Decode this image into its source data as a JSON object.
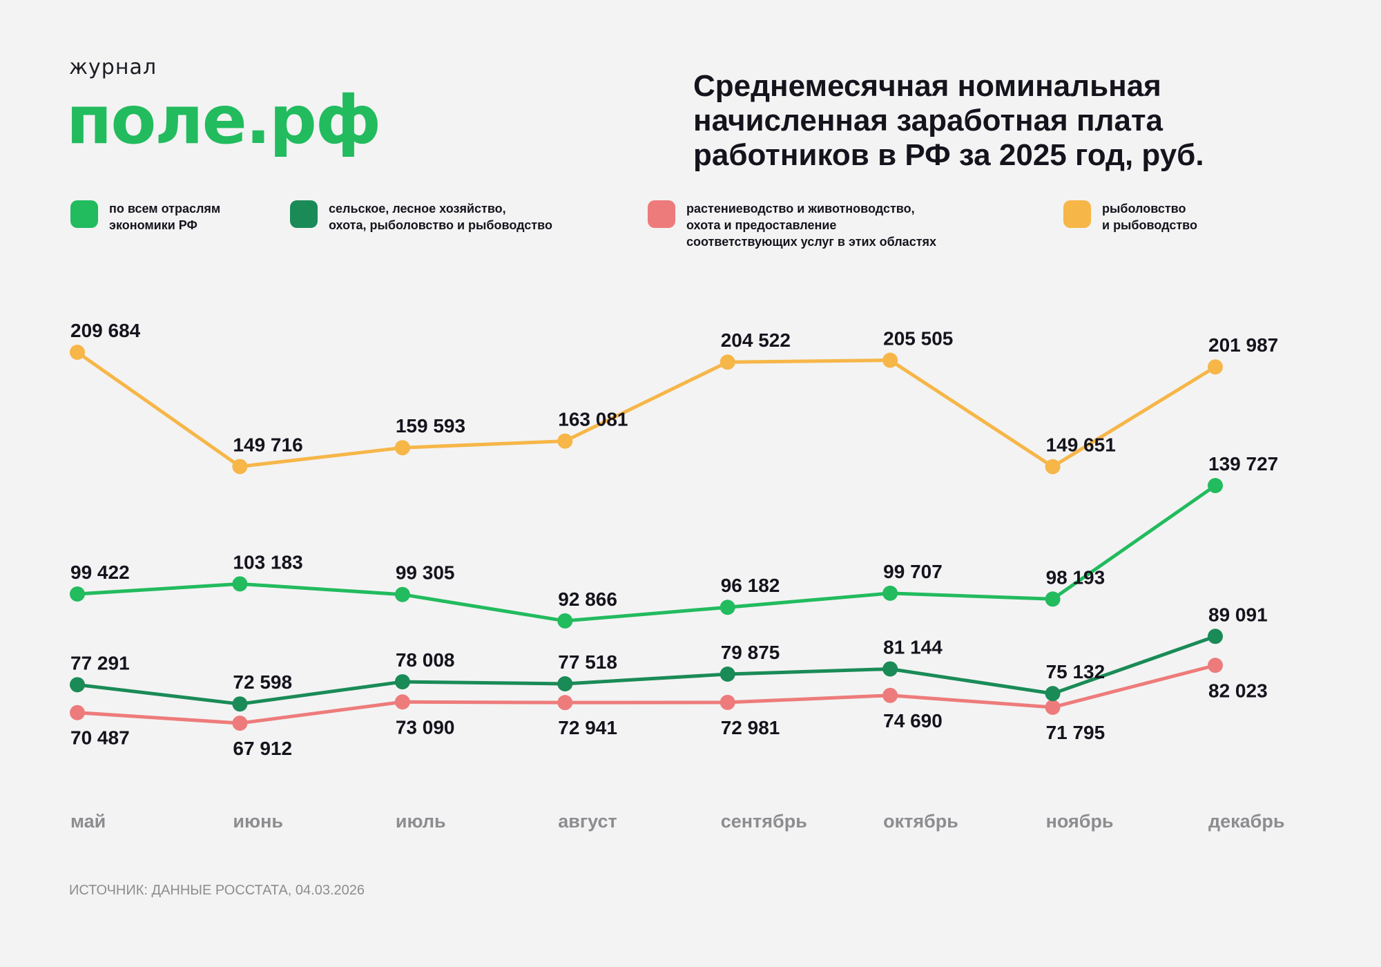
{
  "logo": {
    "small": "журнал",
    "big": "поле.рф"
  },
  "title": [
    "Среднемесячная номинальная",
    "начисленная заработная плата",
    "работников в РФ за 2025 год, руб."
  ],
  "source": "ИСТОЧНИК: ДАННЫЕ РОССТАТА, 04.03.2026",
  "chart_data": {
    "type": "line",
    "title": "Среднемесячная номинальная начисленная заработная плата работников в РФ за 2025 год, руб.",
    "categories": [
      "май",
      "июнь",
      "июль",
      "август",
      "сентябрь",
      "октябрь",
      "ноябрь",
      "декабрь"
    ],
    "grid": false,
    "legend_position": "top",
    "series": [
      {
        "name": "по всем отраслям\nэкономики РФ",
        "color": "#22bb5e",
        "label_side": "above",
        "values": [
          99422,
          103183,
          99305,
          92866,
          96182,
          99707,
          98193,
          139727
        ],
        "labels": [
          "99 422",
          "103 183",
          "99 305",
          "92 866",
          "96 182",
          "99 707",
          "98 193",
          "139 727"
        ]
      },
      {
        "name": "сельское, лесное хозяйство,\nохота, рыболовство и рыбоводство",
        "color": "#1a8b57",
        "label_side": "above",
        "values": [
          77291,
          72598,
          78008,
          77518,
          79875,
          81144,
          75132,
          89091
        ],
        "labels": [
          "77 291",
          "72 598",
          "78 008",
          "77 518",
          "79 875",
          "81 144",
          "75 132",
          "89 091"
        ]
      },
      {
        "name": "растениеводство и животноводство,\nохота и предоставление\nсоответствующих услуг в этих областях",
        "color": "#ee7b7b",
        "label_side": "below",
        "values": [
          70487,
          67912,
          73090,
          72941,
          72981,
          74690,
          71795,
          82023
        ],
        "labels": [
          "70 487",
          "67 912",
          "73 090",
          "72 941",
          "72 981",
          "74 690",
          "71 795",
          "82 023"
        ]
      },
      {
        "name": "рыболовство\nи рыбоводство",
        "color": "#f6b648",
        "label_side": "above",
        "values": [
          209684,
          149716,
          159593,
          163081,
          204522,
          205505,
          149651,
          201987
        ],
        "labels": [
          "209 684",
          "149 716",
          "159 593",
          "163 081",
          "204 522",
          "205 505",
          "149 651",
          "201 987"
        ]
      }
    ]
  }
}
